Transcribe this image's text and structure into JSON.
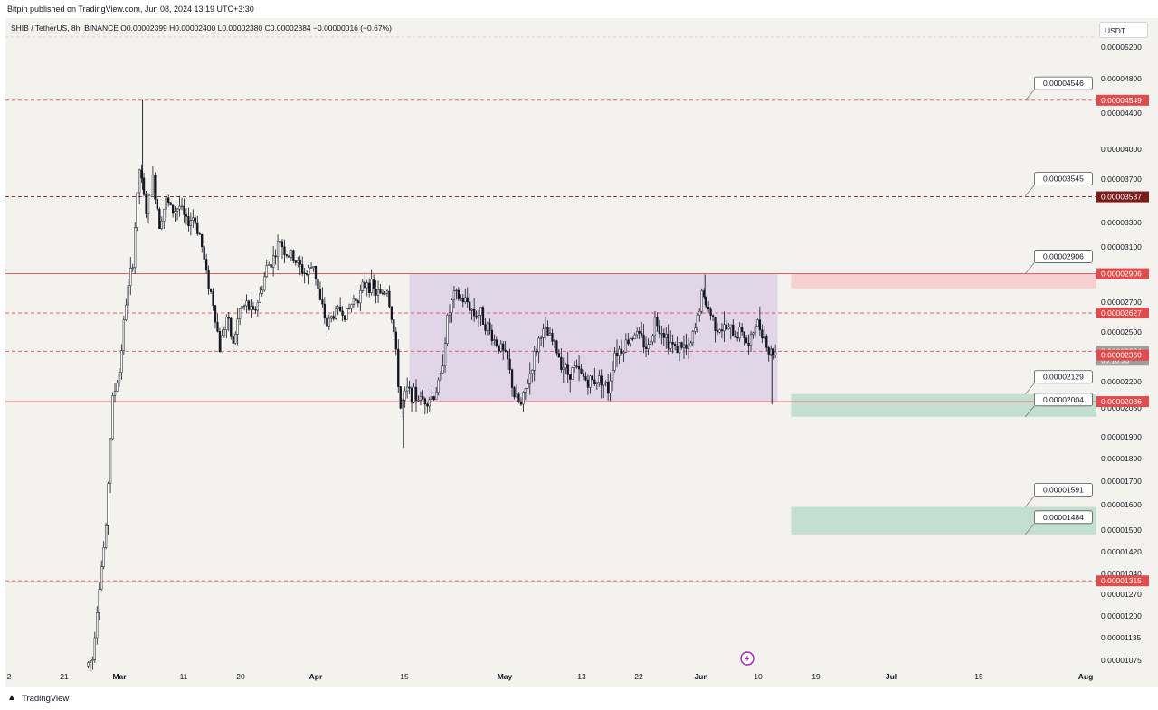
{
  "header": {
    "publisher_line": "Bitpin published on TradingView.com, Jun 08, 2024 13:19 UTC+3:30"
  },
  "legend": {
    "symbol": "SHIB / TetherUS, 8h, BINANCE",
    "open": "O0.00002399",
    "high": "H0.00002400",
    "low": "L0.00002380",
    "close": "C0.00002384",
    "change": "−0.00000016 (−0.67%)"
  },
  "currency": "USDT",
  "footer": {
    "brand": "TradingView"
  },
  "colors": {
    "background": "#f4f2ee",
    "candle": "#131722",
    "resistance_red": "#e24b4b",
    "dark_red": "#7a1c1c",
    "range_box": "#d8cbe6",
    "supply_zone": "#f6caca",
    "demand_zone": "#b9dccd",
    "last_price": "#9e9e9e"
  },
  "chart_data": {
    "type": "candlestick",
    "timeframe": "8h",
    "y_axis": {
      "labels": [
        "0.00005200",
        "0.00004800",
        "0.00004400",
        "0.00004000",
        "0.00003700",
        "0.00003300",
        "0.00003100",
        "0.00002700",
        "0.00002500",
        "0.00002200",
        "0.00002050",
        "0.00001900",
        "0.00001800",
        "0.00001700",
        "0.00001600",
        "0.00001500",
        "0.00001420",
        "0.00001340",
        "0.00001270",
        "0.00001200",
        "0.00001135",
        "0.00001075"
      ]
    },
    "x_axis": {
      "labels": [
        "2",
        "21",
        "Mar",
        "11",
        "20",
        "Apr",
        "15",
        "May",
        "13",
        "22",
        "Jun",
        "10",
        "19",
        "Jul",
        "15",
        "Aug"
      ],
      "bold": [
        "Mar",
        "Apr",
        "May",
        "Jun",
        "Jul",
        "Aug"
      ]
    },
    "price_path": [
      [
        "2024-02-26",
        1.06e-05
      ],
      [
        "2024-02-27",
        1.08e-05
      ],
      [
        "2024-02-28",
        1.3e-05
      ],
      [
        "2024-02-29",
        1.5e-05
      ],
      [
        "2024-03-01",
        2.1e-05
      ],
      [
        "2024-03-02",
        2.26e-05
      ],
      [
        "2024-03-03",
        2.7e-05
      ],
      [
        "2024-03-04",
        3e-05
      ],
      [
        "2024-03-05",
        3.8e-05
      ],
      [
        "2024-03-06",
        3.4e-05
      ],
      [
        "2024-03-07",
        3.7e-05
      ],
      [
        "2024-03-08",
        3.3e-05
      ],
      [
        "2024-03-09",
        3.5e-05
      ],
      [
        "2024-03-10",
        3.4e-05
      ],
      [
        "2024-03-11",
        3.45e-05
      ],
      [
        "2024-03-12",
        3.3e-05
      ],
      [
        "2024-03-13",
        3.35e-05
      ],
      [
        "2024-03-14",
        3.2e-05
      ],
      [
        "2024-03-15",
        2.9e-05
      ],
      [
        "2024-03-16",
        2.7e-05
      ],
      [
        "2024-03-17",
        2.4e-05
      ],
      [
        "2024-03-18",
        2.6e-05
      ],
      [
        "2024-03-19",
        2.42e-05
      ],
      [
        "2024-03-20",
        2.65e-05
      ],
      [
        "2024-03-21",
        2.68e-05
      ],
      [
        "2024-03-22",
        2.62e-05
      ],
      [
        "2024-03-23",
        2.75e-05
      ],
      [
        "2024-03-24",
        2.95e-05
      ],
      [
        "2024-03-25",
        3.02e-05
      ],
      [
        "2024-03-26",
        3.15e-05
      ],
      [
        "2024-03-27",
        3.05e-05
      ],
      [
        "2024-03-28",
        3.02e-05
      ],
      [
        "2024-03-29",
        2.95e-05
      ],
      [
        "2024-03-30",
        2.9e-05
      ],
      [
        "2024-03-31",
        2.98e-05
      ],
      [
        "2024-04-01",
        2.7e-05
      ],
      [
        "2024-04-02",
        2.55e-05
      ],
      [
        "2024-04-03",
        2.62e-05
      ],
      [
        "2024-04-04",
        2.65e-05
      ],
      [
        "2024-04-05",
        2.62e-05
      ],
      [
        "2024-04-06",
        2.72e-05
      ],
      [
        "2024-04-07",
        2.76e-05
      ],
      [
        "2024-04-08",
        2.86e-05
      ],
      [
        "2024-04-09",
        2.78e-05
      ],
      [
        "2024-04-10",
        2.75e-05
      ],
      [
        "2024-04-11",
        2.8e-05
      ],
      [
        "2024-04-12",
        2.5e-05
      ],
      [
        "2024-04-13",
        2.05e-05
      ],
      [
        "2024-04-14",
        2.15e-05
      ],
      [
        "2024-04-15",
        2.12e-05
      ],
      [
        "2024-04-16",
        2.1e-05
      ],
      [
        "2024-04-17",
        2.1e-05
      ],
      [
        "2024-04-18",
        2.12e-05
      ],
      [
        "2024-04-19",
        2.22e-05
      ],
      [
        "2024-04-20",
        2.58e-05
      ],
      [
        "2024-04-21",
        2.75e-05
      ],
      [
        "2024-04-22",
        2.72e-05
      ],
      [
        "2024-04-23",
        2.7e-05
      ],
      [
        "2024-04-24",
        2.62e-05
      ],
      [
        "2024-04-25",
        2.62e-05
      ],
      [
        "2024-04-26",
        2.53e-05
      ],
      [
        "2024-04-27",
        2.45e-05
      ],
      [
        "2024-04-28",
        2.4e-05
      ],
      [
        "2024-04-29",
        2.32e-05
      ],
      [
        "2024-04-30",
        2.12e-05
      ],
      [
        "2024-05-01",
        2.06e-05
      ],
      [
        "2024-05-02",
        2.2e-05
      ],
      [
        "2024-05-03",
        2.35e-05
      ],
      [
        "2024-05-04",
        2.5e-05
      ],
      [
        "2024-05-05",
        2.48e-05
      ],
      [
        "2024-05-06",
        2.42e-05
      ],
      [
        "2024-05-07",
        2.32e-05
      ],
      [
        "2024-05-08",
        2.25e-05
      ],
      [
        "2024-05-09",
        2.28e-05
      ],
      [
        "2024-05-10",
        2.24e-05
      ],
      [
        "2024-05-11",
        2.2e-05
      ],
      [
        "2024-05-12",
        2.21e-05
      ],
      [
        "2024-05-13",
        2.22e-05
      ],
      [
        "2024-05-14",
        2.15e-05
      ],
      [
        "2024-05-15",
        2.38e-05
      ],
      [
        "2024-05-16",
        2.4e-05
      ],
      [
        "2024-05-17",
        2.45e-05
      ],
      [
        "2024-05-18",
        2.5e-05
      ],
      [
        "2024-05-19",
        2.45e-05
      ],
      [
        "2024-05-20",
        2.4e-05
      ],
      [
        "2024-05-21",
        2.58e-05
      ],
      [
        "2024-05-22",
        2.52e-05
      ],
      [
        "2024-05-23",
        2.45e-05
      ],
      [
        "2024-05-24",
        2.4e-05
      ],
      [
        "2024-05-25",
        2.42e-05
      ],
      [
        "2024-05-26",
        2.38e-05
      ],
      [
        "2024-05-27",
        2.52e-05
      ],
      [
        "2024-05-28",
        2.75e-05
      ],
      [
        "2024-05-29",
        2.65e-05
      ],
      [
        "2024-05-30",
        2.55e-05
      ],
      [
        "2024-05-31",
        2.52e-05
      ],
      [
        "2024-06-01",
        2.52e-05
      ],
      [
        "2024-06-02",
        2.48e-05
      ],
      [
        "2024-06-03",
        2.52e-05
      ],
      [
        "2024-06-04",
        2.4e-05
      ],
      [
        "2024-06-05",
        2.56e-05
      ],
      [
        "2024-06-06",
        2.52e-05
      ],
      [
        "2024-06-07",
        2.38e-05
      ],
      [
        "2024-06-08",
        2.38e-05
      ]
    ],
    "key_candles": {
      "all_time_high": 4.55e-05,
      "april_13_wick_low": 1.85e-05,
      "may_28_high": 2.9e-05,
      "june_7_wick_low": 2.07e-05,
      "current": 2.384e-05
    },
    "horizontal_levels": [
      {
        "value": 4.549e-05,
        "style": "dashed",
        "color": "red",
        "axis_tag": "0.00004549"
      },
      {
        "value": 3.537e-05,
        "style": "dashed",
        "color": "dark-red",
        "axis_tag": "0.00003537"
      },
      {
        "value": 2.906e-05,
        "style": "solid",
        "color": "red",
        "axis_tag": "0.00002906"
      },
      {
        "value": 2.627e-05,
        "style": "dashed",
        "color": "red",
        "axis_tag": "0.00002627"
      },
      {
        "value": 2.384e-05,
        "style": "dashed",
        "color": "red",
        "axis_tag": "0.00002384",
        "countdown": "06:10:33"
      },
      {
        "value": 2.36e-05,
        "style": "none",
        "color": "red",
        "axis_tag": "0.00002360"
      },
      {
        "value": 2.086e-05,
        "style": "solid",
        "color": "red",
        "axis_tag": "0.00002086"
      },
      {
        "value": 1.315e-05,
        "style": "dashed",
        "color": "red",
        "axis_tag": "0.00001315"
      }
    ],
    "range_box": {
      "from": "2024-04-14",
      "to": "2024-06-08",
      "top": 2.906e-05,
      "bottom": 2.086e-05
    },
    "zones": [
      {
        "type": "supply",
        "from": "2024-06-10",
        "top": 2.906e-05,
        "bottom": 2.8e-05
      },
      {
        "type": "demand",
        "from": "2024-06-10",
        "top": 2.129e-05,
        "bottom": 2.004e-05
      },
      {
        "type": "demand",
        "from": "2024-06-10",
        "top": 1.591e-05,
        "bottom": 1.484e-05
      }
    ],
    "annotations": [
      {
        "text": "0.00004546",
        "date": "2024-07-15",
        "value": 4.546e-05
      },
      {
        "text": "0.00003545",
        "date": "2024-07-15",
        "value": 3.545e-05
      },
      {
        "text": "0.00002906",
        "date": "2024-07-15",
        "value": 2.906e-05
      },
      {
        "text": "0.00002129",
        "date": "2024-07-15",
        "value": 2.129e-05
      },
      {
        "text": "0.00002004",
        "date": "2024-07-15",
        "value": 2.004e-05
      },
      {
        "text": "0.00001591",
        "date": "2024-07-15",
        "value": 1.591e-05
      },
      {
        "text": "0.00001484",
        "date": "2024-07-15",
        "value": 1.484e-05
      }
    ]
  }
}
